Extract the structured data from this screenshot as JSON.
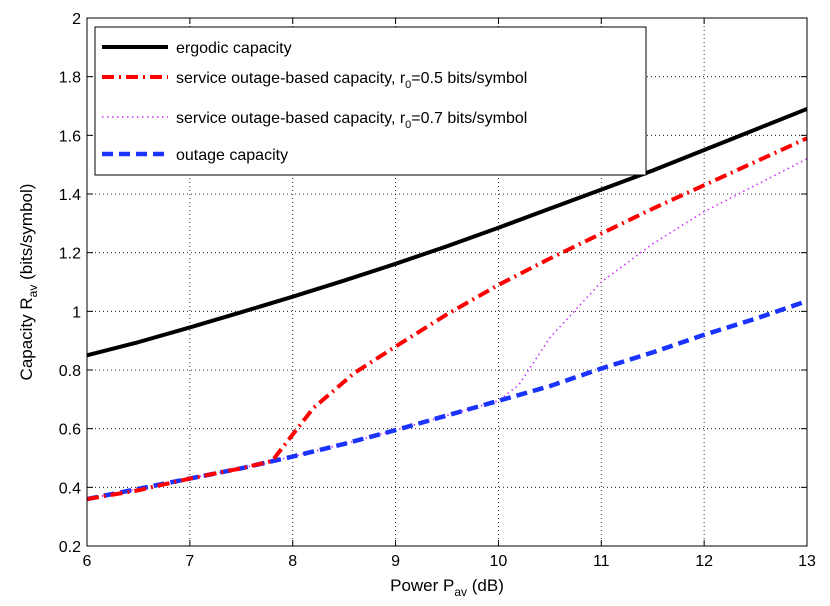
{
  "chart_data": {
    "type": "line",
    "title": "",
    "xlabel": {
      "main": "Power P",
      "sub": "av",
      "suffix": " (dB)"
    },
    "ylabel": {
      "main": "Capacity R",
      "sub": "av",
      "suffix": " (bits/symbol)"
    },
    "xlim": [
      6,
      13
    ],
    "ylim": [
      0.2,
      2
    ],
    "xticks": [
      6,
      7,
      8,
      9,
      10,
      11,
      12,
      13
    ],
    "yticks": [
      0.2,
      0.4,
      0.6,
      0.8,
      1,
      1.2,
      1.4,
      1.6,
      1.8,
      2
    ],
    "xtick_labels": [
      "6",
      "7",
      "8",
      "9",
      "10",
      "11",
      "12",
      "13"
    ],
    "ytick_labels": [
      "0.2",
      "0.4",
      "0.6",
      "0.8",
      "1",
      "1.2",
      "1.4",
      "1.6",
      "1.8",
      "2"
    ],
    "grid": true,
    "legend_position": "top-left",
    "series": [
      {
        "name": "ergodic capacity",
        "legend": {
          "pre": "ergodic capacity",
          "sub": "",
          "post": ""
        },
        "color": "#000000",
        "style": "solid",
        "x": [
          6,
          6.5,
          7,
          7.5,
          8,
          8.5,
          9,
          9.5,
          10,
          10.5,
          11,
          11.5,
          12,
          12.5,
          13
        ],
        "y": [
          0.85,
          0.895,
          0.945,
          0.997,
          1.05,
          1.105,
          1.162,
          1.222,
          1.285,
          1.35,
          1.415,
          1.48,
          1.55,
          1.62,
          1.69
        ]
      },
      {
        "name": "service outage-based capacity, r0=0.5 bits/symbol",
        "legend": {
          "pre": "service outage-based capacity, r",
          "sub": "0",
          "post": "=0.5 bits/symbol"
        },
        "color": "#ff0000",
        "style": "dashdot",
        "x": [
          6,
          6.5,
          7,
          7.5,
          7.8,
          8,
          8.2,
          8.6,
          9,
          9.5,
          10,
          10.5,
          11,
          11.5,
          12,
          12.5,
          13
        ],
        "y": [
          0.36,
          0.39,
          0.43,
          0.465,
          0.49,
          0.58,
          0.67,
          0.79,
          0.88,
          0.99,
          1.09,
          1.18,
          1.265,
          1.35,
          1.43,
          1.51,
          1.59
        ]
      },
      {
        "name": "service outage-based capacity, r0=0.7 bits/symbol",
        "legend": {
          "pre": "service outage-based capacity, r",
          "sub": "0",
          "post": "=0.7 bits/symbol"
        },
        "color": "#cc33ff",
        "style": "dotted",
        "x": [
          6,
          6.5,
          7,
          7.5,
          8,
          8.5,
          9,
          9.5,
          10,
          10.2,
          10.5,
          11,
          11.5,
          12,
          12.5,
          13
        ],
        "y": [
          0.36,
          0.395,
          0.43,
          0.465,
          0.505,
          0.548,
          0.595,
          0.645,
          0.695,
          0.75,
          0.91,
          1.1,
          1.23,
          1.34,
          1.43,
          1.52
        ]
      },
      {
        "name": "outage capacity",
        "legend": {
          "pre": "outage capacity",
          "sub": "",
          "post": ""
        },
        "color": "#1a33ff",
        "style": "dashed",
        "x": [
          6,
          6.5,
          7,
          7.5,
          8,
          8.5,
          9,
          9.5,
          10,
          10.5,
          11,
          11.5,
          12,
          12.5,
          13
        ],
        "y": [
          0.36,
          0.395,
          0.43,
          0.465,
          0.505,
          0.548,
          0.595,
          0.645,
          0.695,
          0.745,
          0.805,
          0.86,
          0.92,
          0.975,
          1.035
        ]
      }
    ]
  }
}
